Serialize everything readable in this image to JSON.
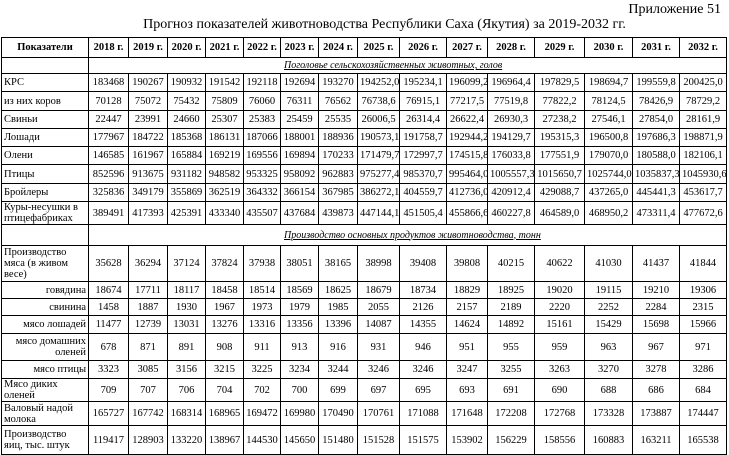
{
  "appendix": "Приложение  51",
  "title": "Прогноз показателей животноводства Республики Саха (Якутия) за 2019-2032 гг.",
  "columns": [
    "Показатели",
    "2018 г.",
    "2019 г.",
    "2020 г.",
    "2021 г.",
    "2022 г.",
    "2023 г.",
    "2024 г.",
    "2025 г.",
    "2026 г.",
    "2027 г.",
    "2028 г.",
    "2029 г.",
    "2030 г.",
    "2031 г.",
    "2032 г."
  ],
  "sections": [
    {
      "title": "Поголовье сельскохозяйственных животных, голов",
      "rows": [
        {
          "label": "КРС",
          "sub": false,
          "values": [
            "183468",
            "190267",
            "190932",
            "191542",
            "192118",
            "192694",
            "193270",
            "194252,0",
            "195234,1",
            "196099,2",
            "196964,4",
            "197829,5",
            "198694,7",
            "199559,8",
            "200425,0"
          ]
        },
        {
          "label": "из них коров",
          "sub": false,
          "values": [
            "70128",
            "75072",
            "75432",
            "75809",
            "76060",
            "76311",
            "76562",
            "76738,6",
            "76915,1",
            "77217,5",
            "77519,8",
            "77822,2",
            "78124,5",
            "78426,9",
            "78729,2"
          ]
        },
        {
          "label": "Свиньи",
          "sub": false,
          "values": [
            "22447",
            "23991",
            "24660",
            "25307",
            "25383",
            "25459",
            "25535",
            "26006,5",
            "26314,4",
            "26622,4",
            "26930,3",
            "27238,2",
            "27546,1",
            "27854,0",
            "28161,9"
          ]
        },
        {
          "label": "Лошади",
          "sub": false,
          "values": [
            "177967",
            "184722",
            "185368",
            "186131",
            "187066",
            "188001",
            "188936",
            "190573,1",
            "191758,7",
            "192944,2",
            "194129,7",
            "195315,3",
            "196500,8",
            "197686,3",
            "198871,9"
          ]
        },
        {
          "label": "Олени",
          "sub": false,
          "values": [
            "146585",
            "161967",
            "165884",
            "169219",
            "169556",
            "169894",
            "170233",
            "171479,7",
            "172997,7",
            "174515,8",
            "176033,8",
            "177551,9",
            "179070,0",
            "180588,0",
            "182106,1"
          ]
        },
        {
          "label": "Птицы",
          "sub": false,
          "values": [
            "852596",
            "913675",
            "931182",
            "948582",
            "953325",
            "958092",
            "962883",
            "975277,4",
            "985370,7",
            "995464,0",
            "1005557,3",
            "1015650,7",
            "1025744,0",
            "1035837,3",
            "1045930,6"
          ]
        },
        {
          "label": "Бройлеры",
          "sub": false,
          "values": [
            "325836",
            "349179",
            "355869",
            "362519",
            "364332",
            "366154",
            "367985",
            "386272,1",
            "404559,7",
            "412736,0",
            "420912,4",
            "429088,7",
            "437265,0",
            "445441,3",
            "453617,7"
          ]
        },
        {
          "label": "Куры-несушки в птицефабриках",
          "sub": false,
          "values": [
            "389491",
            "417393",
            "425391",
            "433340",
            "435507",
            "437684",
            "439873",
            "447144,1",
            "451505,4",
            "455866,6",
            "460227,8",
            "464589,0",
            "468950,2",
            "473311,4",
            "477672,6"
          ]
        }
      ]
    },
    {
      "title": "Производство  основных продуктов животноводства,   тонн",
      "rows": [
        {
          "label": "Производство мяса (в живом весе)",
          "sub": false,
          "values": [
            "35628",
            "36294",
            "37124",
            "37824",
            "37938",
            "38051",
            "38165",
            "38998",
            "39408",
            "39808",
            "40215",
            "40622",
            "41030",
            "41437",
            "41844"
          ]
        },
        {
          "label": "говядина",
          "sub": true,
          "values": [
            "18674",
            "17711",
            "18117",
            "18458",
            "18514",
            "18569",
            "18625",
            "18679",
            "18734",
            "18829",
            "18925",
            "19020",
            "19115",
            "19210",
            "19306"
          ]
        },
        {
          "label": "свинина",
          "sub": true,
          "values": [
            "1458",
            "1887",
            "1930",
            "1967",
            "1973",
            "1979",
            "1985",
            "2055",
            "2126",
            "2157",
            "2189",
            "2220",
            "2252",
            "2284",
            "2315"
          ]
        },
        {
          "label": "мясо лошадей",
          "sub": true,
          "values": [
            "11477",
            "12739",
            "13031",
            "13276",
            "13316",
            "13356",
            "13396",
            "14087",
            "14355",
            "14624",
            "14892",
            "15161",
            "15429",
            "15698",
            "15966"
          ]
        },
        {
          "label": "мясо домашних оленей",
          "sub": true,
          "values": [
            "678",
            "871",
            "891",
            "908",
            "911",
            "913",
            "916",
            "931",
            "946",
            "951",
            "955",
            "959",
            "963",
            "967",
            "971"
          ]
        },
        {
          "label": "мясо птицы",
          "sub": true,
          "values": [
            "3323",
            "3085",
            "3156",
            "3215",
            "3225",
            "3234",
            "3244",
            "3246",
            "3246",
            "3247",
            "3255",
            "3263",
            "3270",
            "3278",
            "3286"
          ]
        },
        {
          "label": "Мясо диких оленей",
          "sub": false,
          "values": [
            "709",
            "707",
            "706",
            "704",
            "702",
            "700",
            "699",
            "697",
            "695",
            "693",
            "691",
            "690",
            "688",
            "686",
            "684"
          ]
        },
        {
          "label": "Валовый надой молока",
          "sub": false,
          "values": [
            "165727",
            "167742",
            "168314",
            "168965",
            "169472",
            "169980",
            "170490",
            "170761",
            "171088",
            "171648",
            "172208",
            "172768",
            "173328",
            "173887",
            "174447"
          ]
        },
        {
          "label": "Производство яиц, тыс. штук",
          "sub": false,
          "values": [
            "119417",
            "128903",
            "133220",
            "138967",
            "144530",
            "145650",
            "151480",
            "151528",
            "151575",
            "153902",
            "156229",
            "158556",
            "160883",
            "163211",
            "165538"
          ]
        }
      ]
    }
  ]
}
